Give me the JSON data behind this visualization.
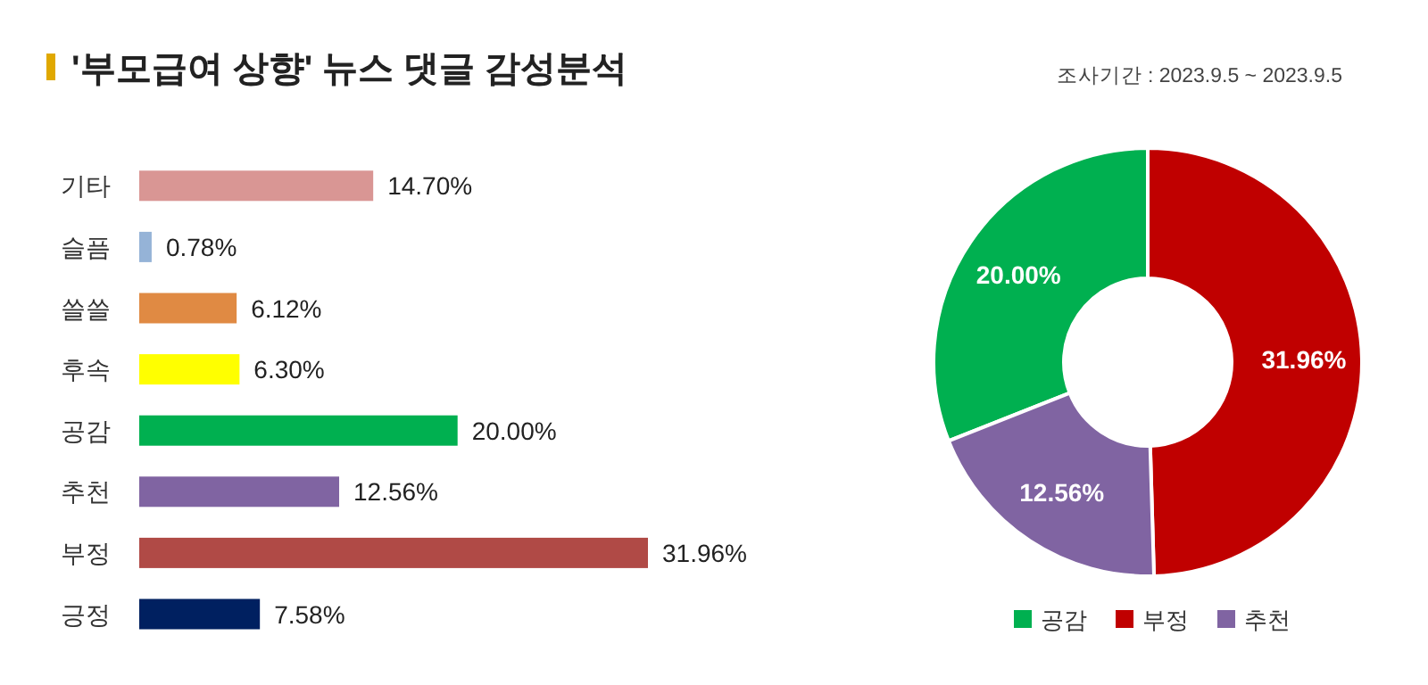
{
  "chart_data": [
    {
      "type": "bar",
      "orientation": "horizontal",
      "title": "'부모급여 상향' 뉴스 댓글 감성분석",
      "categories": [
        "기타",
        "슬픔",
        "쓸쓸",
        "후속",
        "공감",
        "추천",
        "부정",
        "긍정"
      ],
      "values": [
        14.7,
        0.78,
        6.12,
        6.3,
        20.0,
        12.56,
        31.96,
        7.58
      ],
      "colors": [
        "#d99694",
        "#95b3d7",
        "#e08a43",
        "#ffff00",
        "#00b050",
        "#8064a2",
        "#b04a46",
        "#002060"
      ],
      "value_labels": [
        "14.70%",
        "0.78%",
        "6.12%",
        "6.30%",
        "20.00%",
        "12.56%",
        "31.96%",
        "7.58%"
      ]
    },
    {
      "type": "donut",
      "subtitle": "조사기간 : 2023.9.5 ~ 2023.9.5",
      "categories": [
        "공감",
        "부정",
        "추천"
      ],
      "values": [
        20.0,
        31.96,
        12.56
      ],
      "colors": [
        "#00b050",
        "#c00000",
        "#8064a2"
      ],
      "value_labels": [
        "20.00%",
        "31.96%",
        "12.56%"
      ],
      "legend": "bottom"
    }
  ]
}
